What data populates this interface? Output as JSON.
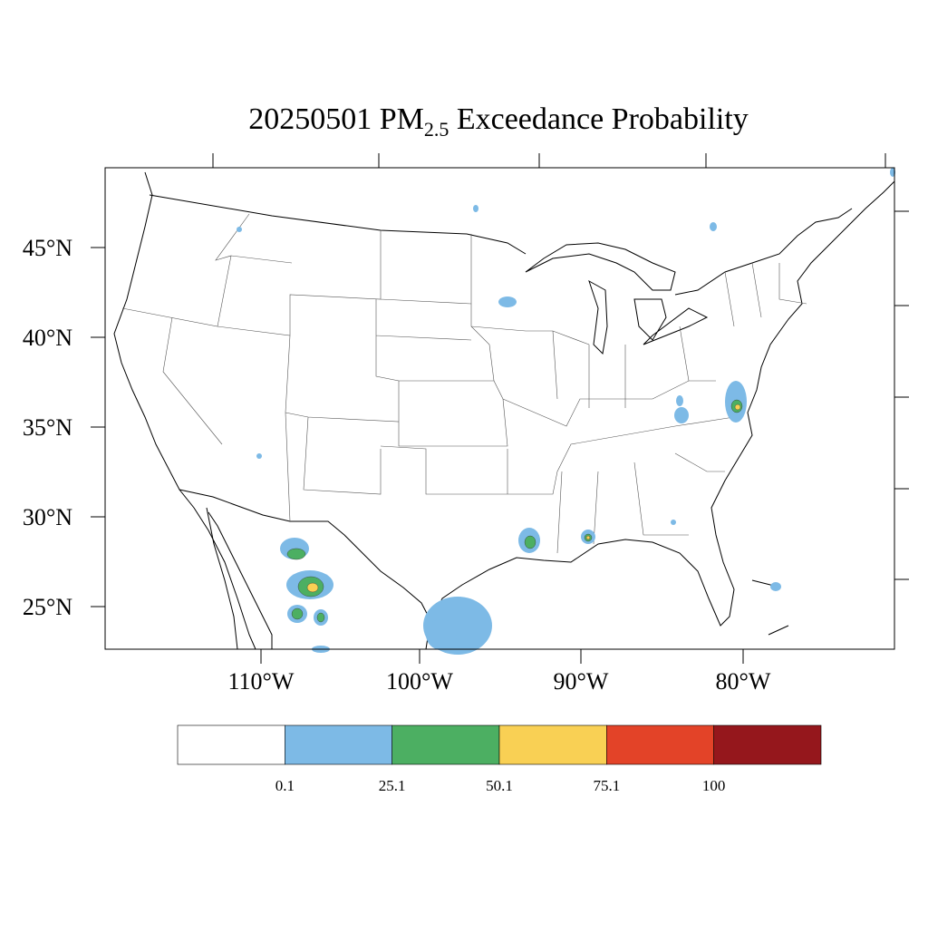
{
  "title": {
    "date": "20250501",
    "species": "PM",
    "subscript": "2.5",
    "rest": "Exceedance Probability"
  },
  "lat_labels": [
    "45°N",
    "40°N",
    "35°N",
    "30°N",
    "25°N"
  ],
  "lon_labels": [
    "110°W",
    "100°W",
    "90°W",
    "80°W"
  ],
  "colorbar": {
    "colors": [
      "#ffffff",
      "#7dbae6",
      "#4caf62",
      "#f9d054",
      "#e34328",
      "#95171c"
    ],
    "labels": [
      "0.1",
      "25.1",
      "50.1",
      "75.1",
      "100"
    ]
  }
}
